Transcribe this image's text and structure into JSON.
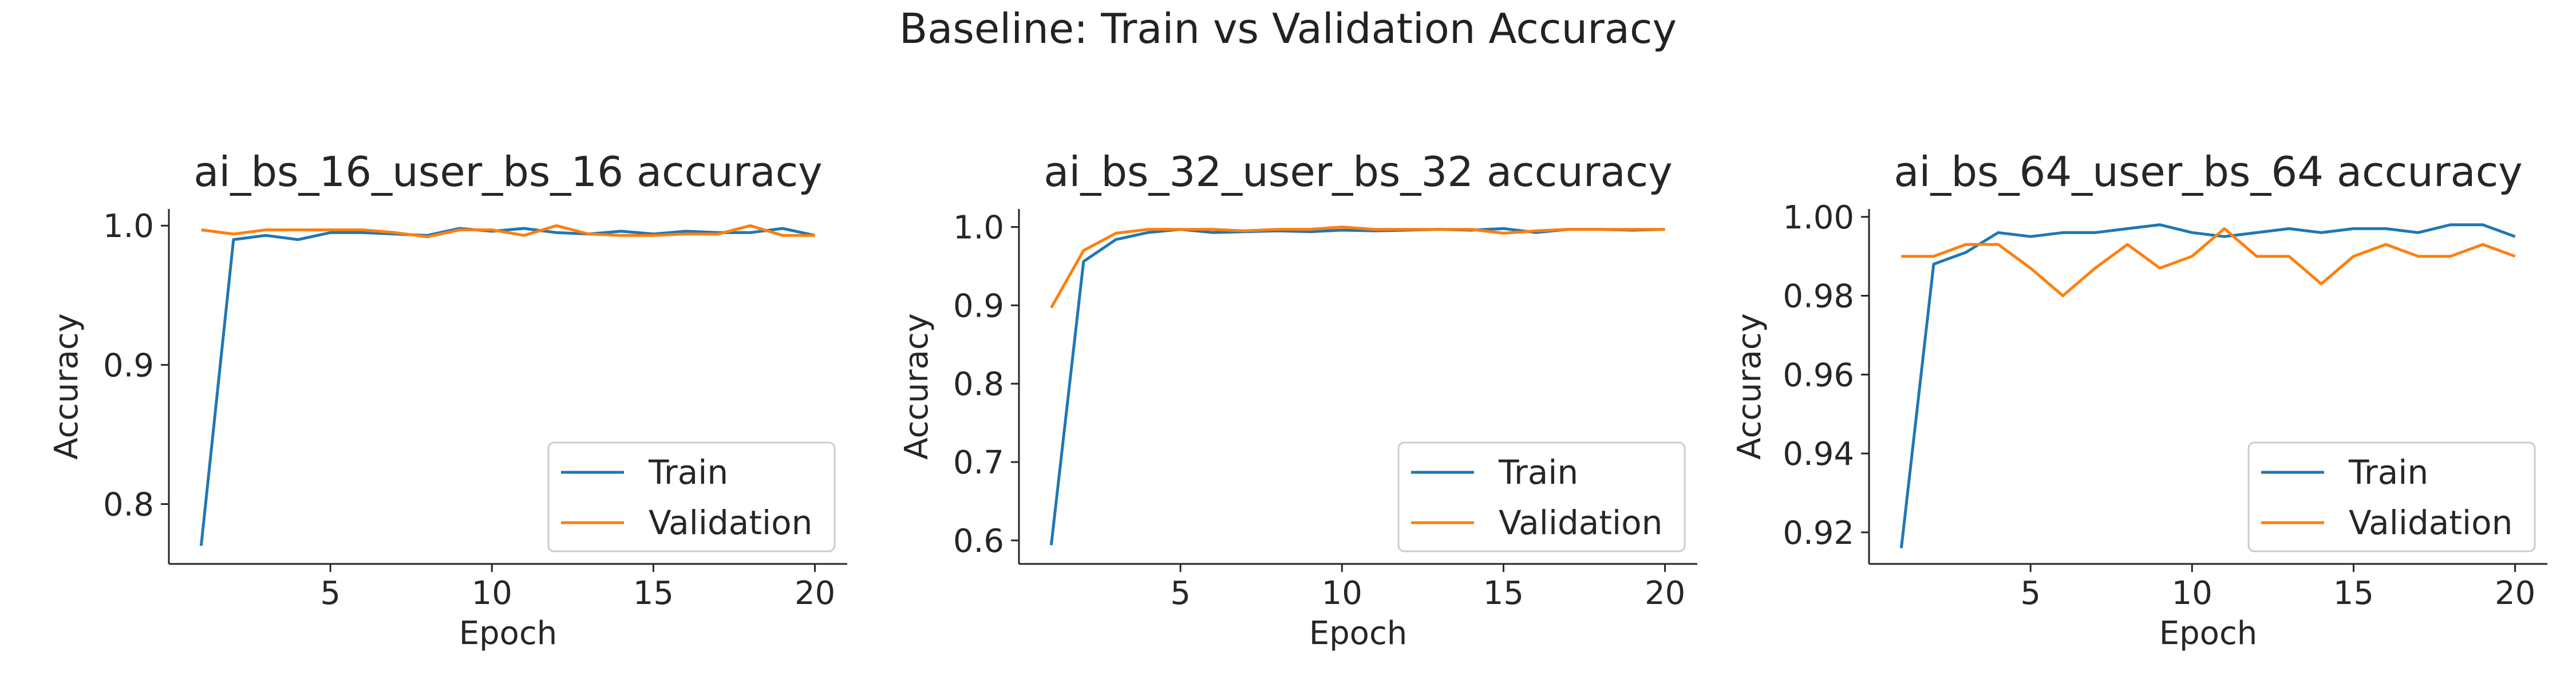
{
  "figure": {
    "suptitle": "Baseline: Train vs Validation Accuracy"
  },
  "colors": {
    "train": "#1f77b4",
    "validation": "#ff7f0e",
    "axis": "#262626",
    "legend_border": "#cccccc"
  },
  "chart_data": [
    {
      "type": "line",
      "title": "ai_bs_16_user_bs_16 accuracy",
      "xlabel": "Epoch",
      "ylabel": "Accuracy",
      "xlim": [
        0,
        21
      ],
      "ylim": [
        0.757,
        1.012
      ],
      "xticks": [
        5,
        10,
        15,
        20
      ],
      "xtick_labels": [
        "5",
        "10",
        "15",
        "20"
      ],
      "yticks": [
        0.8,
        0.9,
        1.0
      ],
      "ytick_labels": [
        "0.8",
        "0.9",
        "1.0"
      ],
      "grid": false,
      "legend_position": "lower-right",
      "x": [
        1,
        2,
        3,
        4,
        5,
        6,
        7,
        8,
        9,
        10,
        11,
        12,
        13,
        14,
        15,
        16,
        17,
        18,
        19,
        20
      ],
      "series": [
        {
          "name": "Train",
          "color_key": "train",
          "values": [
            0.77,
            0.99,
            0.993,
            0.99,
            0.995,
            0.995,
            0.994,
            0.993,
            0.998,
            0.996,
            0.998,
            0.995,
            0.994,
            0.996,
            0.994,
            0.996,
            0.995,
            0.995,
            0.998,
            0.993
          ]
        },
        {
          "name": "Validation",
          "color_key": "validation",
          "values": [
            0.997,
            0.994,
            0.997,
            0.997,
            0.997,
            0.997,
            0.995,
            0.992,
            0.997,
            0.997,
            0.993,
            1.0,
            0.994,
            0.993,
            0.993,
            0.994,
            0.994,
            1.0,
            0.993,
            0.993
          ]
        }
      ]
    },
    {
      "type": "line",
      "title": "ai_bs_32_user_bs_32 accuracy",
      "xlabel": "Epoch",
      "ylabel": "Accuracy",
      "xlim": [
        0,
        21
      ],
      "ylim": [
        0.57,
        1.023
      ],
      "xticks": [
        5,
        10,
        15,
        20
      ],
      "xtick_labels": [
        "5",
        "10",
        "15",
        "20"
      ],
      "yticks": [
        0.6,
        0.7,
        0.8,
        0.9,
        1.0
      ],
      "ytick_labels": [
        "0.6",
        "0.7",
        "0.8",
        "0.9",
        "1.0"
      ],
      "grid": false,
      "legend_position": "lower-right",
      "x": [
        1,
        2,
        3,
        4,
        5,
        6,
        7,
        8,
        9,
        10,
        11,
        12,
        13,
        14,
        15,
        16,
        17,
        18,
        19,
        20
      ],
      "series": [
        {
          "name": "Train",
          "color_key": "train",
          "values": [
            0.594,
            0.956,
            0.984,
            0.993,
            0.997,
            0.993,
            0.994,
            0.995,
            0.994,
            0.996,
            0.995,
            0.996,
            0.997,
            0.996,
            0.998,
            0.993,
            0.997,
            0.997,
            0.996,
            0.997
          ]
        },
        {
          "name": "Validation",
          "color_key": "validation",
          "values": [
            0.897,
            0.97,
            0.992,
            0.997,
            0.997,
            0.997,
            0.995,
            0.997,
            0.997,
            1.0,
            0.997,
            0.997,
            0.997,
            0.997,
            0.992,
            0.995,
            0.997,
            0.997,
            0.997,
            0.997
          ]
        }
      ]
    },
    {
      "type": "line",
      "title": "ai_bs_64_user_bs_64 accuracy",
      "xlabel": "Epoch",
      "ylabel": "Accuracy",
      "xlim": [
        0,
        21
      ],
      "ylim": [
        0.912,
        1.002
      ],
      "xticks": [
        5,
        10,
        15,
        20
      ],
      "xtick_labels": [
        "5",
        "10",
        "15",
        "20"
      ],
      "yticks": [
        0.92,
        0.94,
        0.96,
        0.98,
        1.0
      ],
      "ytick_labels": [
        "0.92",
        "0.94",
        "0.96",
        "0.98",
        "1.00"
      ],
      "grid": false,
      "legend_position": "lower-right",
      "x": [
        1,
        2,
        3,
        4,
        5,
        6,
        7,
        8,
        9,
        10,
        11,
        12,
        13,
        14,
        15,
        16,
        17,
        18,
        19,
        20
      ],
      "series": [
        {
          "name": "Train",
          "color_key": "train",
          "values": [
            0.916,
            0.988,
            0.991,
            0.996,
            0.995,
            0.996,
            0.996,
            0.997,
            0.998,
            0.996,
            0.995,
            0.996,
            0.997,
            0.996,
            0.997,
            0.997,
            0.996,
            0.998,
            0.998,
            0.995
          ]
        },
        {
          "name": "Validation",
          "color_key": "validation",
          "values": [
            0.99,
            0.99,
            0.993,
            0.993,
            0.987,
            0.98,
            0.987,
            0.993,
            0.987,
            0.99,
            0.997,
            0.99,
            0.99,
            0.983,
            0.99,
            0.993,
            0.99,
            0.99,
            0.993,
            0.99
          ]
        }
      ]
    }
  ]
}
